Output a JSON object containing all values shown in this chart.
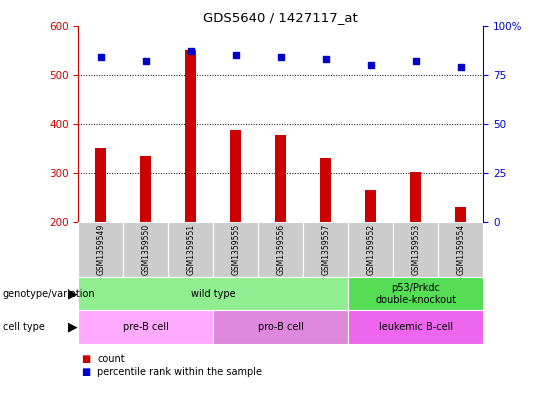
{
  "title": "GDS5640 / 1427117_at",
  "samples": [
    "GSM1359549",
    "GSM1359550",
    "GSM1359551",
    "GSM1359555",
    "GSM1359556",
    "GSM1359557",
    "GSM1359552",
    "GSM1359553",
    "GSM1359554"
  ],
  "counts": [
    350,
    335,
    550,
    388,
    378,
    330,
    265,
    302,
    230
  ],
  "percentiles": [
    84,
    82,
    87,
    85,
    84,
    83,
    80,
    82,
    79
  ],
  "ymin": 200,
  "ymax": 600,
  "yticks_left": [
    200,
    300,
    400,
    500,
    600
  ],
  "yticks_right": [
    0,
    25,
    50,
    75,
    100
  ],
  "bar_color": "#cc0000",
  "dot_color": "#0000cc",
  "label_color_left": "#cc0000",
  "label_color_right": "#0000cc",
  "geno_groups": [
    {
      "label": "wild type",
      "start": 0,
      "end": 6,
      "color": "#90ee90"
    },
    {
      "label": "p53/Prkdc\ndouble-knockout",
      "start": 6,
      "end": 9,
      "color": "#55dd55"
    }
  ],
  "ct_groups": [
    {
      "label": "pre-B cell",
      "start": 0,
      "end": 3,
      "color": "#ffaaff"
    },
    {
      "label": "pro-B cell",
      "start": 3,
      "end": 6,
      "color": "#dd88dd"
    },
    {
      "label": "leukemic B-cell",
      "start": 6,
      "end": 9,
      "color": "#ee66ee"
    }
  ],
  "sample_box_color": "#cccccc",
  "xlabel_genotype": "genotype/variation",
  "xlabel_celltype": "cell type",
  "legend_items": [
    {
      "color": "#cc0000",
      "label": "count"
    },
    {
      "color": "#0000cc",
      "label": "percentile rank within the sample"
    }
  ]
}
